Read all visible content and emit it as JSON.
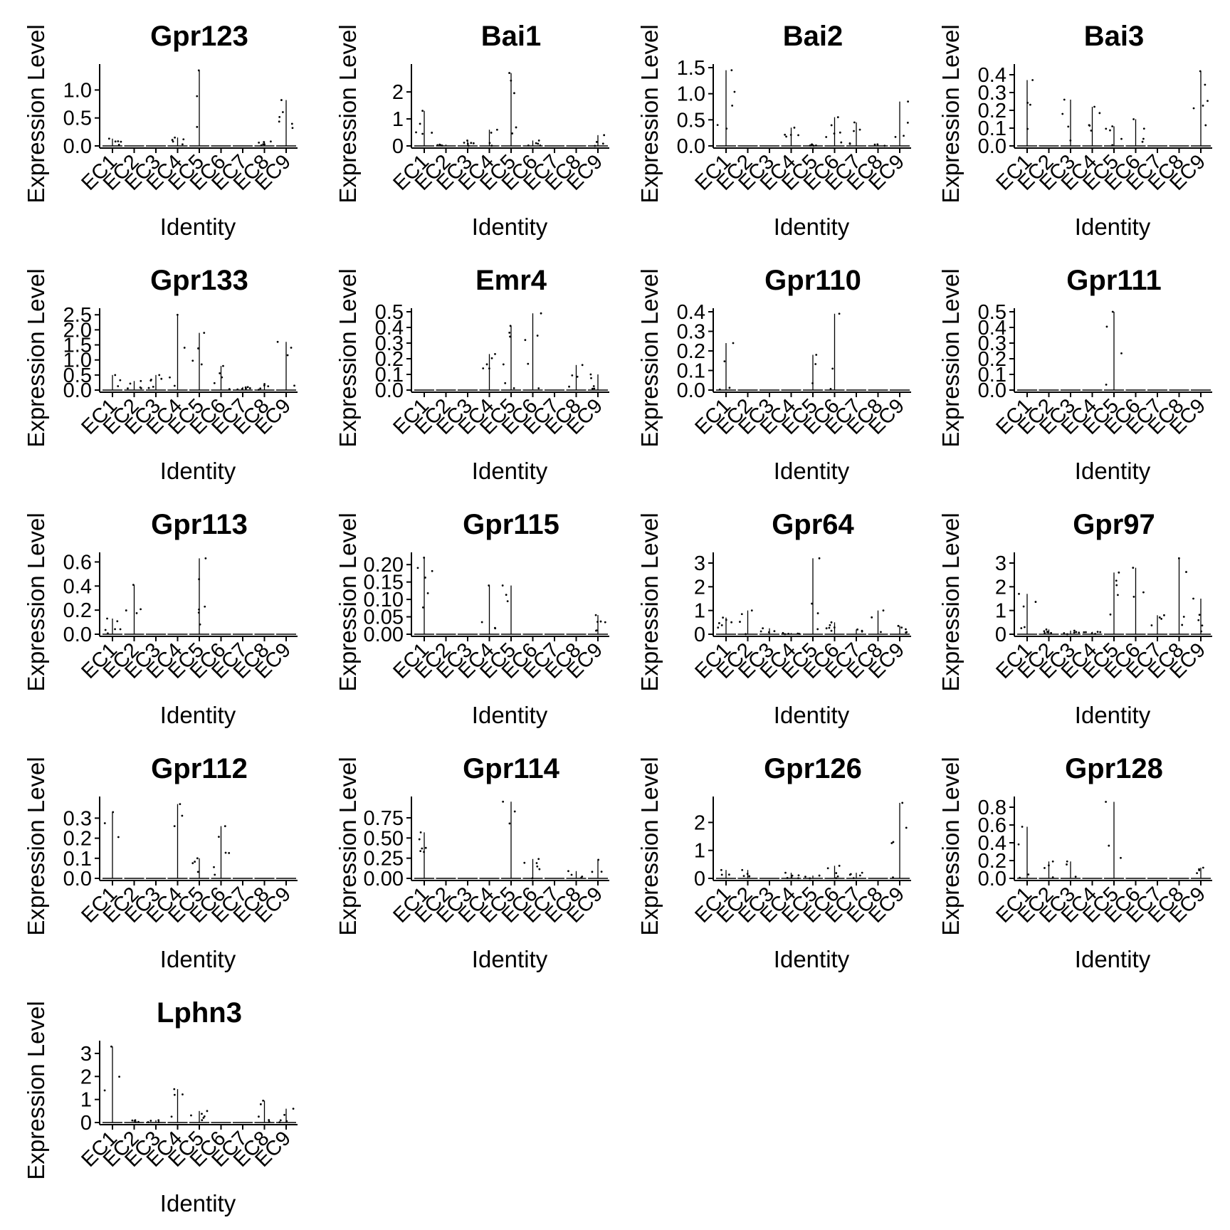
{
  "chart_data": {
    "type": "violin",
    "xlabel": "Identity",
    "ylabel": "Expression Level",
    "categories": [
      "EC1",
      "EC2",
      "EC3",
      "EC4",
      "EC5",
      "EC6",
      "EC7",
      "EC8",
      "EC9"
    ],
    "panels": [
      {
        "title": "Gpr123",
        "yticks": [
          "0.0",
          "0.5",
          "1.0"
        ],
        "ylim": [
          0,
          1.4
        ],
        "max": [
          0.13,
          0,
          0,
          0.15,
          1.35,
          0,
          0,
          0.08,
          0.82
        ]
      },
      {
        "title": "Bai1",
        "yticks": [
          "0",
          "1",
          "2"
        ],
        "ylim": [
          0,
          2.9
        ],
        "max": [
          1.3,
          0.05,
          0.2,
          0.6,
          2.7,
          0.2,
          0,
          0,
          0.4
        ]
      },
      {
        "title": "Bai2",
        "yticks": [
          "0.0",
          "0.5",
          "1.0",
          "1.5"
        ],
        "ylim": [
          0,
          1.5
        ],
        "max": [
          1.45,
          0,
          0,
          0.35,
          0.03,
          0.55,
          0.45,
          0.03,
          0.85
        ]
      },
      {
        "title": "Bai3",
        "yticks": [
          "0.0",
          "0.1",
          "0.2",
          "0.3",
          "0.4"
        ],
        "ylim": [
          0,
          0.44
        ],
        "max": [
          0.37,
          0,
          0.26,
          0.22,
          0.11,
          0.15,
          0,
          0,
          0.42
        ]
      },
      {
        "title": "Gpr133",
        "yticks": [
          "0.0",
          "0.5",
          "1.0",
          "1.5",
          "2.0",
          "2.5"
        ],
        "ylim": [
          0,
          2.6
        ],
        "max": [
          0.5,
          0.3,
          0.5,
          2.5,
          1.9,
          0.8,
          0.1,
          0.2,
          1.6
        ]
      },
      {
        "title": "Emr4",
        "yticks": [
          "0.0",
          "0.1",
          "0.2",
          "0.3",
          "0.4",
          "0.5"
        ],
        "ylim": [
          0,
          0.5
        ],
        "max": [
          0,
          0,
          0,
          0.23,
          0.41,
          0.49,
          0,
          0.16,
          0.1
        ]
      },
      {
        "title": "Gpr110",
        "yticks": [
          "0.0",
          "0.1",
          "0.2",
          "0.3",
          "0.4"
        ],
        "ylim": [
          0,
          0.4
        ],
        "max": [
          0.24,
          0,
          0,
          0,
          0.18,
          0.39,
          0,
          0,
          0
        ]
      },
      {
        "title": "Gpr111",
        "yticks": [
          "0.0",
          "0.1",
          "0.2",
          "0.3",
          "0.4",
          "0.5"
        ],
        "ylim": [
          0,
          0.5
        ],
        "max": [
          0,
          0,
          0,
          0,
          0.5,
          0,
          0,
          0,
          0
        ]
      },
      {
        "title": "Gpr113",
        "yticks": [
          "0.0",
          "0.2",
          "0.4",
          "0.6"
        ],
        "ylim": [
          0,
          0.65
        ],
        "max": [
          0.13,
          0.41,
          0,
          0,
          0.63,
          0,
          0,
          0,
          0
        ]
      },
      {
        "title": "Gpr115",
        "yticks": [
          "0.00",
          "0.05",
          "0.10",
          "0.15",
          "0.20"
        ],
        "ylim": [
          0,
          0.225
        ],
        "max": [
          0.22,
          0,
          0,
          0.14,
          0.14,
          0,
          0,
          0,
          0.055
        ]
      },
      {
        "title": "Gpr64",
        "yticks": [
          "0",
          "1",
          "2",
          "3"
        ],
        "ylim": [
          0,
          3.3
        ],
        "max": [
          0.7,
          1.0,
          0.25,
          0.05,
          3.2,
          0.5,
          0.2,
          1.0,
          0.35
        ]
      },
      {
        "title": "Gpr97",
        "yticks": [
          "0",
          "1",
          "2",
          "3"
        ],
        "ylim": [
          0,
          3.3
        ],
        "max": [
          1.7,
          0.2,
          0.15,
          0.1,
          2.6,
          2.8,
          0.8,
          3.2,
          1.5
        ]
      },
      {
        "title": "Gpr112",
        "yticks": [
          "0.0",
          "0.1",
          "0.2",
          "0.3"
        ],
        "ylim": [
          0,
          0.39
        ],
        "max": [
          0.33,
          0,
          0,
          0.37,
          0.1,
          0.26,
          0,
          0,
          0
        ]
      },
      {
        "title": "Gpr114",
        "yticks": [
          "0.00",
          "0.25",
          "0.50",
          "0.75"
        ],
        "ylim": [
          0,
          0.97
        ],
        "max": [
          0.57,
          0,
          0,
          0,
          0.95,
          0.24,
          0,
          0.09,
          0.23
        ]
      },
      {
        "title": "Gpr126",
        "yticks": [
          "0",
          "1",
          "2"
        ],
        "ylim": [
          0,
          2.8
        ],
        "max": [
          0.3,
          0.3,
          0,
          0.2,
          0.1,
          0.45,
          0.2,
          0,
          2.7
        ]
      },
      {
        "title": "Gpr128",
        "yticks": [
          "0.0",
          "0.2",
          "0.4",
          "0.6",
          "0.8"
        ],
        "ylim": [
          0,
          0.88
        ],
        "max": [
          0.58,
          0.19,
          0.19,
          0,
          0.86,
          0,
          0,
          0,
          0.12
        ]
      },
      {
        "title": "Lphn3",
        "yticks": [
          "0",
          "1",
          "2",
          "3"
        ],
        "ylim": [
          0,
          3.4
        ],
        "max": [
          3.3,
          0.1,
          0.1,
          1.45,
          0.5,
          0,
          0,
          0.95,
          0.6
        ]
      }
    ]
  }
}
